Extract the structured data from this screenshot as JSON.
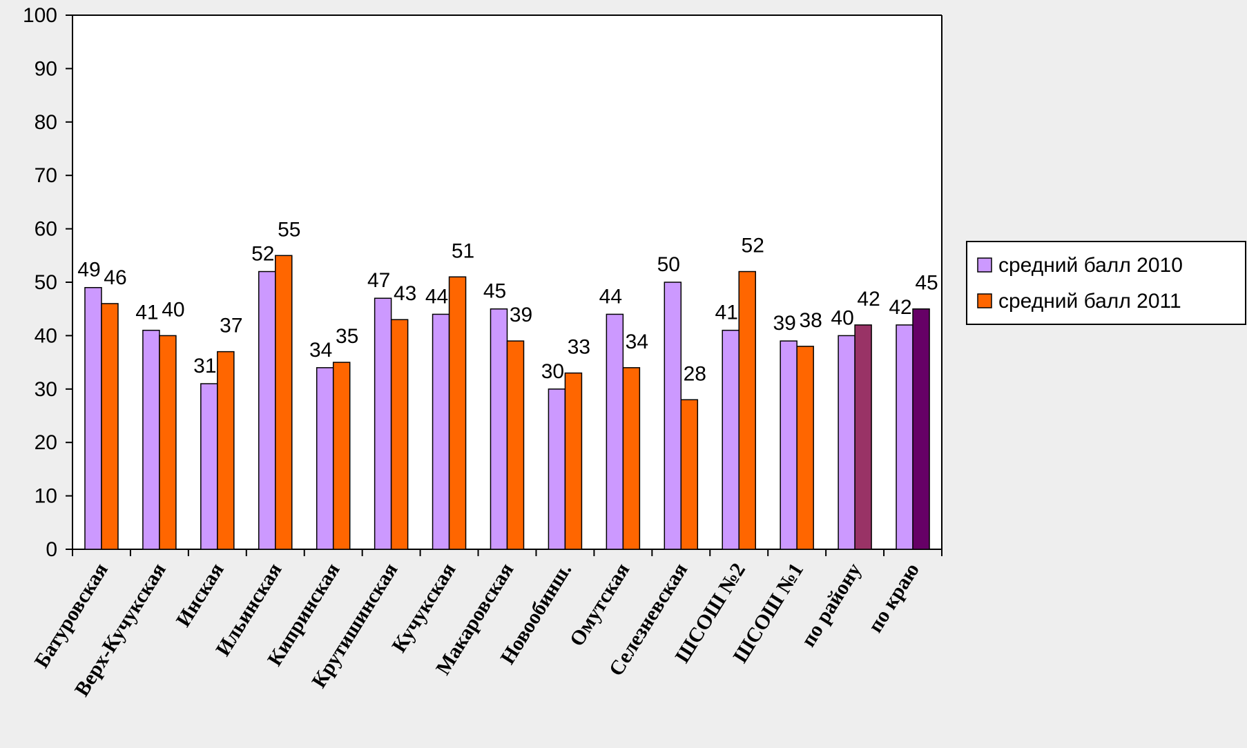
{
  "chart_data": {
    "type": "bar",
    "categories": [
      "Батуровская",
      "Верх-Кучукская",
      "Инская",
      "Ильинская",
      "Кипринская",
      "Крутишинская",
      "Кучукская",
      "Макаровская",
      "Новообинш.",
      "Омутская",
      "Селезневская",
      "ШСОШ №2",
      "ШСОШ №1",
      "по району",
      "по краю"
    ],
    "series": [
      {
        "name": "средний балл 2010",
        "color": "#cc99ff",
        "values": [
          49,
          41,
          31,
          52,
          34,
          47,
          44,
          45,
          30,
          44,
          50,
          41,
          39,
          40,
          42
        ]
      },
      {
        "name": "средний балл 2011",
        "color": "#ff6600",
        "values": [
          46,
          40,
          37,
          55,
          35,
          43,
          51,
          39,
          33,
          34,
          28,
          52,
          38,
          42,
          45
        ]
      }
    ],
    "point_colors": {
      "1": {
        "13": "#993366",
        "14": "#660066"
      }
    },
    "yticks": [
      "0",
      "10",
      "20",
      "30",
      "40",
      "50",
      "60",
      "70",
      "80",
      "90",
      "100"
    ],
    "ylim": [
      0,
      100
    ],
    "grid": false,
    "legend_position": "right"
  }
}
